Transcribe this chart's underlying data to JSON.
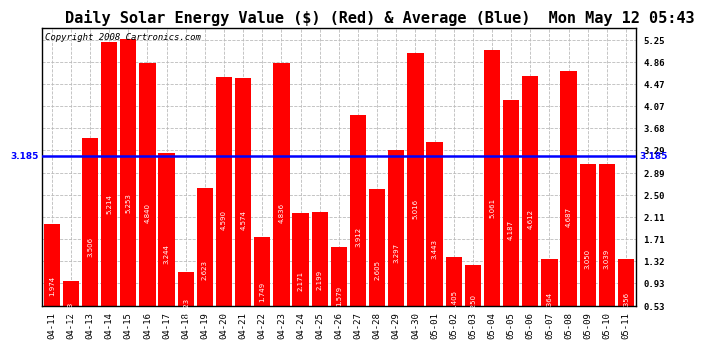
{
  "title": "Daily Solar Energy Value ($) (Red) & Average (Blue)  Mon May 12 05:43",
  "copyright": "Copyright 2008 Cartronics.com",
  "categories": [
    "04-11",
    "04-12",
    "04-13",
    "04-14",
    "04-15",
    "04-16",
    "04-17",
    "04-18",
    "04-19",
    "04-20",
    "04-21",
    "04-22",
    "04-23",
    "04-24",
    "04-25",
    "04-26",
    "04-27",
    "04-28",
    "04-29",
    "04-30",
    "05-01",
    "05-02",
    "05-03",
    "05-04",
    "05-05",
    "05-06",
    "05-07",
    "05-08",
    "05-09",
    "05-10",
    "05-11"
  ],
  "values": [
    1.974,
    0.963,
    3.506,
    5.214,
    5.253,
    4.84,
    3.244,
    1.123,
    2.623,
    4.59,
    4.574,
    1.749,
    4.836,
    2.171,
    2.199,
    1.579,
    3.912,
    2.605,
    3.297,
    5.016,
    3.443,
    1.405,
    1.25,
    5.061,
    4.187,
    4.612,
    1.364,
    4.687,
    3.05,
    3.039,
    1.356
  ],
  "average": 3.185,
  "bar_color": "#ff0000",
  "avg_line_color": "#0000ff",
  "background_color": "#ffffff",
  "plot_bg_color": "#ffffff",
  "grid_color": "#bbbbbb",
  "yticks": [
    0.53,
    0.93,
    1.32,
    1.71,
    2.11,
    2.5,
    2.89,
    3.29,
    3.68,
    4.07,
    4.47,
    4.86,
    5.25
  ],
  "ylim_min": 0.53,
  "ylim_max": 5.45,
  "title_fontsize": 11,
  "copyright_fontsize": 6.5,
  "tick_fontsize": 6.5,
  "value_fontsize": 5.0
}
